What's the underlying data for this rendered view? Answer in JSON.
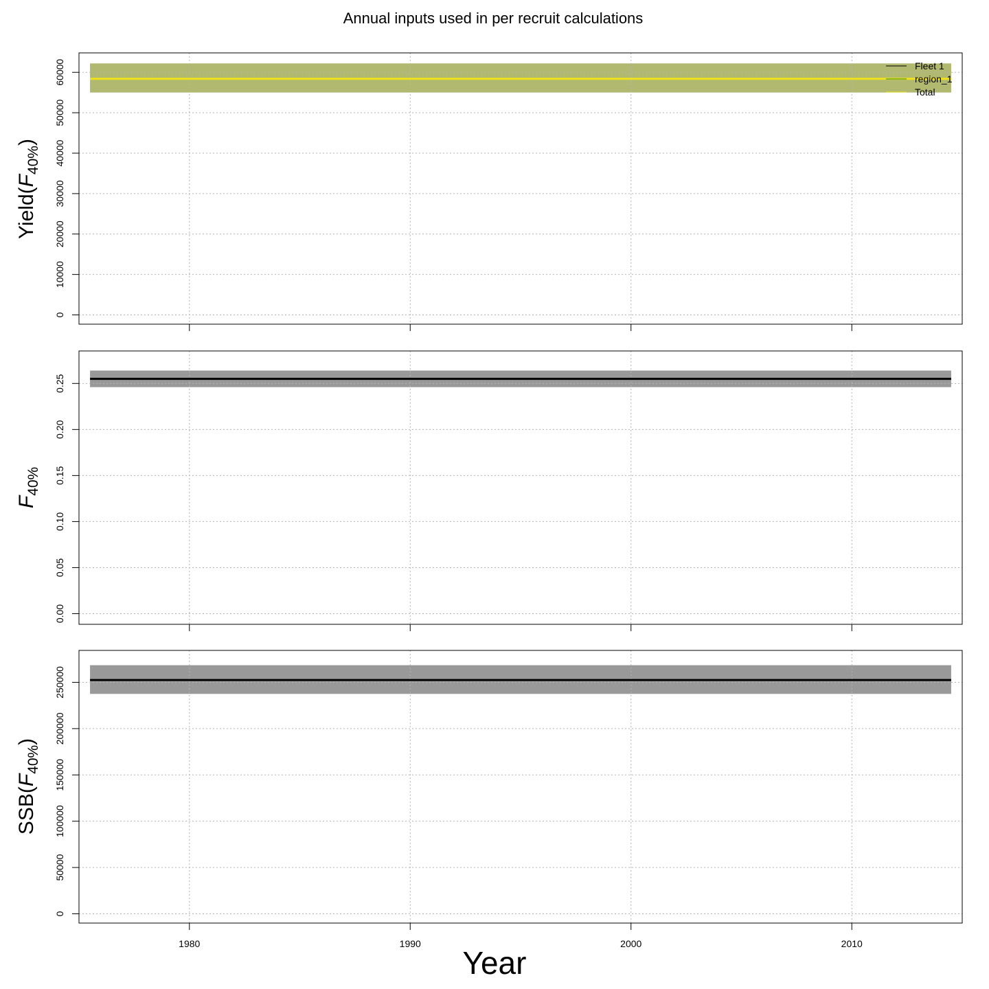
{
  "figure": {
    "title": "Annual inputs used in per recruit calculations",
    "xlabel": "Year"
  },
  "chart_data": [
    {
      "type": "line",
      "panel": "yield",
      "ylabel_main": "Yield(",
      "ylabel_f": "F",
      "ylabel_sub": "40%",
      "ylabel_close": ")",
      "xlim": [
        1975,
        2015
      ],
      "ylim": [
        0,
        62000
      ],
      "x_ticks": [
        1980,
        1990,
        2000,
        2010
      ],
      "y_ticks": [
        0,
        10000,
        20000,
        30000,
        40000,
        50000,
        60000
      ],
      "y_tick_labels": [
        "0",
        "10000",
        "20000",
        "30000",
        "40000",
        "50000",
        "60000"
      ],
      "grid": true,
      "legend_position": "top-right",
      "x": [
        1975.5,
        2014.5
      ],
      "band": {
        "lower": 55000,
        "upper": 62200,
        "color": "#b1b86f"
      },
      "series": [
        {
          "name": "Fleet 1",
          "values": [
            58400,
            58400
          ],
          "color": "#000000",
          "visible": false
        },
        {
          "name": "region_1",
          "values": [
            58400,
            58400
          ],
          "color": "#228b22",
          "visible": false
        },
        {
          "name": "Total",
          "values": [
            58400,
            58400
          ],
          "color": "#f0e21a",
          "visible": true
        }
      ]
    },
    {
      "type": "line",
      "panel": "f",
      "ylabel_f": "F",
      "ylabel_sub": "40%",
      "xlim": [
        1975,
        2015
      ],
      "ylim": [
        0,
        0.27
      ],
      "x_ticks": [
        1980,
        1990,
        2000,
        2010
      ],
      "y_ticks": [
        0,
        0.05,
        0.1,
        0.15,
        0.2,
        0.25
      ],
      "y_tick_labels": [
        "0.00",
        "0.05",
        "0.10",
        "0.15",
        "0.20",
        "0.25"
      ],
      "grid": true,
      "x": [
        1975.5,
        2014.5
      ],
      "band": {
        "lower": 0.246,
        "upper": 0.264,
        "color": "#999999"
      },
      "series": [
        {
          "values": [
            0.255,
            0.255
          ],
          "color": "#000000",
          "visible": true
        }
      ]
    },
    {
      "type": "line",
      "panel": "ssb",
      "ylabel_main": "SSB(",
      "ylabel_f": "F",
      "ylabel_sub": "40%",
      "ylabel_close": ")",
      "xlim": [
        1975,
        2015
      ],
      "ylim": [
        0,
        270000
      ],
      "x_ticks": [
        1980,
        1990,
        2000,
        2010
      ],
      "x_tick_labels": [
        "1980",
        "1990",
        "2000",
        "2010"
      ],
      "y_ticks": [
        0,
        50000,
        100000,
        150000,
        200000,
        250000
      ],
      "y_tick_labels": [
        "0",
        "50000",
        "100000",
        "150000",
        "200000",
        "250000"
      ],
      "grid": true,
      "x": [
        1975.5,
        2014.5
      ],
      "band": {
        "lower": 237500,
        "upper": 268500,
        "color": "#999999"
      },
      "series": [
        {
          "values": [
            252500,
            252500
          ],
          "color": "#000000",
          "visible": true
        }
      ]
    }
  ]
}
